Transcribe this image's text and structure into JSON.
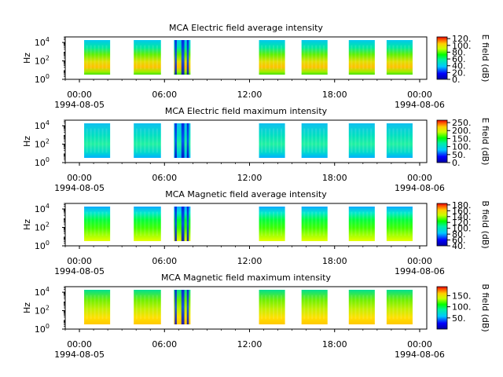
{
  "chart_data": [
    {
      "type": "heatmap",
      "title": "MCA  Electric field average intensity",
      "ylabel": "Hz",
      "yscale": "log",
      "ylim": [
        1,
        40000
      ],
      "y_ticks": [
        {
          "base": "10",
          "exp": "0",
          "value": 1
        },
        {
          "base": "10",
          "exp": "2",
          "value": 100
        },
        {
          "base": "10",
          "exp": "4",
          "value": 10000
        }
      ],
      "x_ticks": [
        {
          "time": "00:00",
          "date": "1994-08-05"
        },
        {
          "time": "06:00",
          "date": ""
        },
        {
          "time": "12:00",
          "date": ""
        },
        {
          "time": "18:00",
          "date": ""
        },
        {
          "time": "00:00",
          "date": "1994-08-06"
        }
      ],
      "xlim": [
        "1994-08-04 23:00",
        "1994-08-06 00:30"
      ],
      "colorbar": {
        "label": "E field (dB)",
        "range": [
          0,
          125
        ],
        "ticks": [
          "0.",
          "20.",
          "40.",
          "60.",
          "80.",
          "100.",
          "120."
        ]
      },
      "data_segments_utc": [
        [
          "00:20",
          "02:10"
        ],
        [
          "03:50",
          "05:45"
        ],
        [
          "06:40",
          "07:50"
        ],
        [
          "12:40",
          "14:30"
        ],
        [
          "15:40",
          "17:30"
        ],
        [
          "19:00",
          "20:50"
        ],
        [
          "21:40",
          "23:30"
        ]
      ]
    },
    {
      "type": "heatmap",
      "title": "MCA  Electric field maximum intensity",
      "ylabel": "Hz",
      "yscale": "log",
      "ylim": [
        1,
        40000
      ],
      "y_ticks": [
        {
          "base": "10",
          "exp": "0",
          "value": 1
        },
        {
          "base": "10",
          "exp": "2",
          "value": 100
        },
        {
          "base": "10",
          "exp": "4",
          "value": 10000
        }
      ],
      "x_ticks": [
        {
          "time": "00:00",
          "date": "1994-08-05"
        },
        {
          "time": "06:00",
          "date": ""
        },
        {
          "time": "12:00",
          "date": ""
        },
        {
          "time": "18:00",
          "date": ""
        },
        {
          "time": "00:00",
          "date": "1994-08-06"
        }
      ],
      "xlim": [
        "1994-08-04 23:00",
        "1994-08-06 00:30"
      ],
      "colorbar": {
        "label": "E field (dB)",
        "range": [
          0,
          265
        ],
        "ticks": [
          "0.",
          "50.",
          "100.",
          "150.",
          "200.",
          "250."
        ]
      },
      "data_segments_utc": [
        [
          "00:20",
          "02:10"
        ],
        [
          "03:50",
          "05:45"
        ],
        [
          "06:40",
          "07:50"
        ],
        [
          "12:40",
          "14:30"
        ],
        [
          "15:40",
          "17:30"
        ],
        [
          "19:00",
          "20:50"
        ],
        [
          "21:40",
          "23:30"
        ]
      ]
    },
    {
      "type": "heatmap",
      "title": "MCA  Magnetic field average intensity",
      "ylabel": "Hz",
      "yscale": "log",
      "ylim": [
        1,
        40000
      ],
      "y_ticks": [
        {
          "base": "10",
          "exp": "0",
          "value": 1
        },
        {
          "base": "10",
          "exp": "2",
          "value": 100
        },
        {
          "base": "10",
          "exp": "4",
          "value": 10000
        }
      ],
      "x_ticks": [
        {
          "time": "00:00",
          "date": "1994-08-05"
        },
        {
          "time": "06:00",
          "date": ""
        },
        {
          "time": "12:00",
          "date": ""
        },
        {
          "time": "18:00",
          "date": ""
        },
        {
          "time": "00:00",
          "date": "1994-08-06"
        }
      ],
      "xlim": [
        "1994-08-04 23:00",
        "1994-08-06 00:30"
      ],
      "colorbar": {
        "label": "B field (dB)",
        "range": [
          40,
          185
        ],
        "ticks": [
          "40.",
          "60.",
          "80.",
          "100.",
          "120.",
          "140.",
          "160.",
          "180."
        ]
      },
      "data_segments_utc": [
        [
          "00:20",
          "02:10"
        ],
        [
          "03:50",
          "05:45"
        ],
        [
          "06:40",
          "07:50"
        ],
        [
          "12:40",
          "14:30"
        ],
        [
          "15:40",
          "17:30"
        ],
        [
          "19:00",
          "20:50"
        ],
        [
          "21:40",
          "23:30"
        ]
      ]
    },
    {
      "type": "heatmap",
      "title": "MCA  Magnetic field maximum intensity",
      "ylabel": "Hz",
      "yscale": "log",
      "ylim": [
        1,
        40000
      ],
      "y_ticks": [
        {
          "base": "10",
          "exp": "0",
          "value": 1
        },
        {
          "base": "10",
          "exp": "2",
          "value": 100
        },
        {
          "base": "10",
          "exp": "4",
          "value": 10000
        }
      ],
      "x_ticks": [
        {
          "time": "00:00",
          "date": "1994-08-05"
        },
        {
          "time": "06:00",
          "date": ""
        },
        {
          "time": "12:00",
          "date": ""
        },
        {
          "time": "18:00",
          "date": ""
        },
        {
          "time": "00:00",
          "date": "1994-08-06"
        }
      ],
      "xlim": [
        "1994-08-04 23:00",
        "1994-08-06 00:30"
      ],
      "colorbar": {
        "label": "B field (dB)",
        "range": [
          0,
          190
        ],
        "ticks": [
          "50.",
          "100.",
          "150."
        ]
      },
      "data_segments_utc": [
        [
          "00:20",
          "02:10"
        ],
        [
          "03:50",
          "05:45"
        ],
        [
          "06:40",
          "07:50"
        ],
        [
          "12:40",
          "14:30"
        ],
        [
          "15:40",
          "17:30"
        ],
        [
          "19:00",
          "20:50"
        ],
        [
          "21:40",
          "23:30"
        ]
      ]
    }
  ]
}
